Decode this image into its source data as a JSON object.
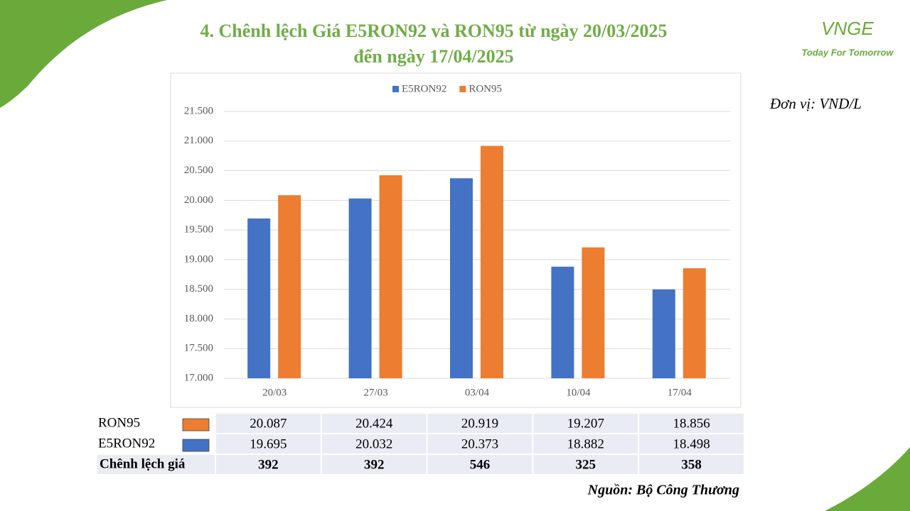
{
  "logo": {
    "brand": "VNGE",
    "tagline": "Today For Tomorrow"
  },
  "unit": "Đơn vị: VND/L",
  "source": "Nguồn: Bộ Công Thương",
  "chart_data": {
    "type": "bar",
    "title": [
      "4. Chênh lệch Giá E5RON92 và RON95 từ ngày 20/03/2025",
      "đến ngày 17/04/2025"
    ],
    "categories": [
      "20/03",
      "27/03",
      "03/04",
      "10/04",
      "17/04"
    ],
    "series": [
      {
        "name": "E5RON92",
        "color": "#4472c4",
        "values": [
          19695,
          20032,
          20373,
          18882,
          18498
        ],
        "value_labels": [
          "19.695",
          "20.032",
          "20.373",
          "18.882",
          "18.498"
        ]
      },
      {
        "name": "RON95",
        "color": "#ed7d31",
        "values": [
          20087,
          20424,
          20919,
          19207,
          18856
        ],
        "value_labels": [
          "20.087",
          "20.424",
          "20.919",
          "19.207",
          "18.856"
        ]
      }
    ],
    "ylim": [
      17000,
      21500
    ],
    "yticks": [
      {
        "value": 17000,
        "label": "17.000"
      },
      {
        "value": 17500,
        "label": "17.500"
      },
      {
        "value": 18000,
        "label": "18.000"
      },
      {
        "value": 18500,
        "label": "18.500"
      },
      {
        "value": 19000,
        "label": "19.000"
      },
      {
        "value": 19500,
        "label": "19.500"
      },
      {
        "value": 20000,
        "label": "20.000"
      },
      {
        "value": 20500,
        "label": "20.500"
      },
      {
        "value": 21000,
        "label": "21.000"
      },
      {
        "value": 21500,
        "label": "21.500"
      }
    ],
    "grid": true,
    "legend": "top"
  },
  "table": {
    "diff_label": "Chênh lệch giá",
    "diff": [
      392,
      392,
      546,
      325,
      358
    ]
  }
}
